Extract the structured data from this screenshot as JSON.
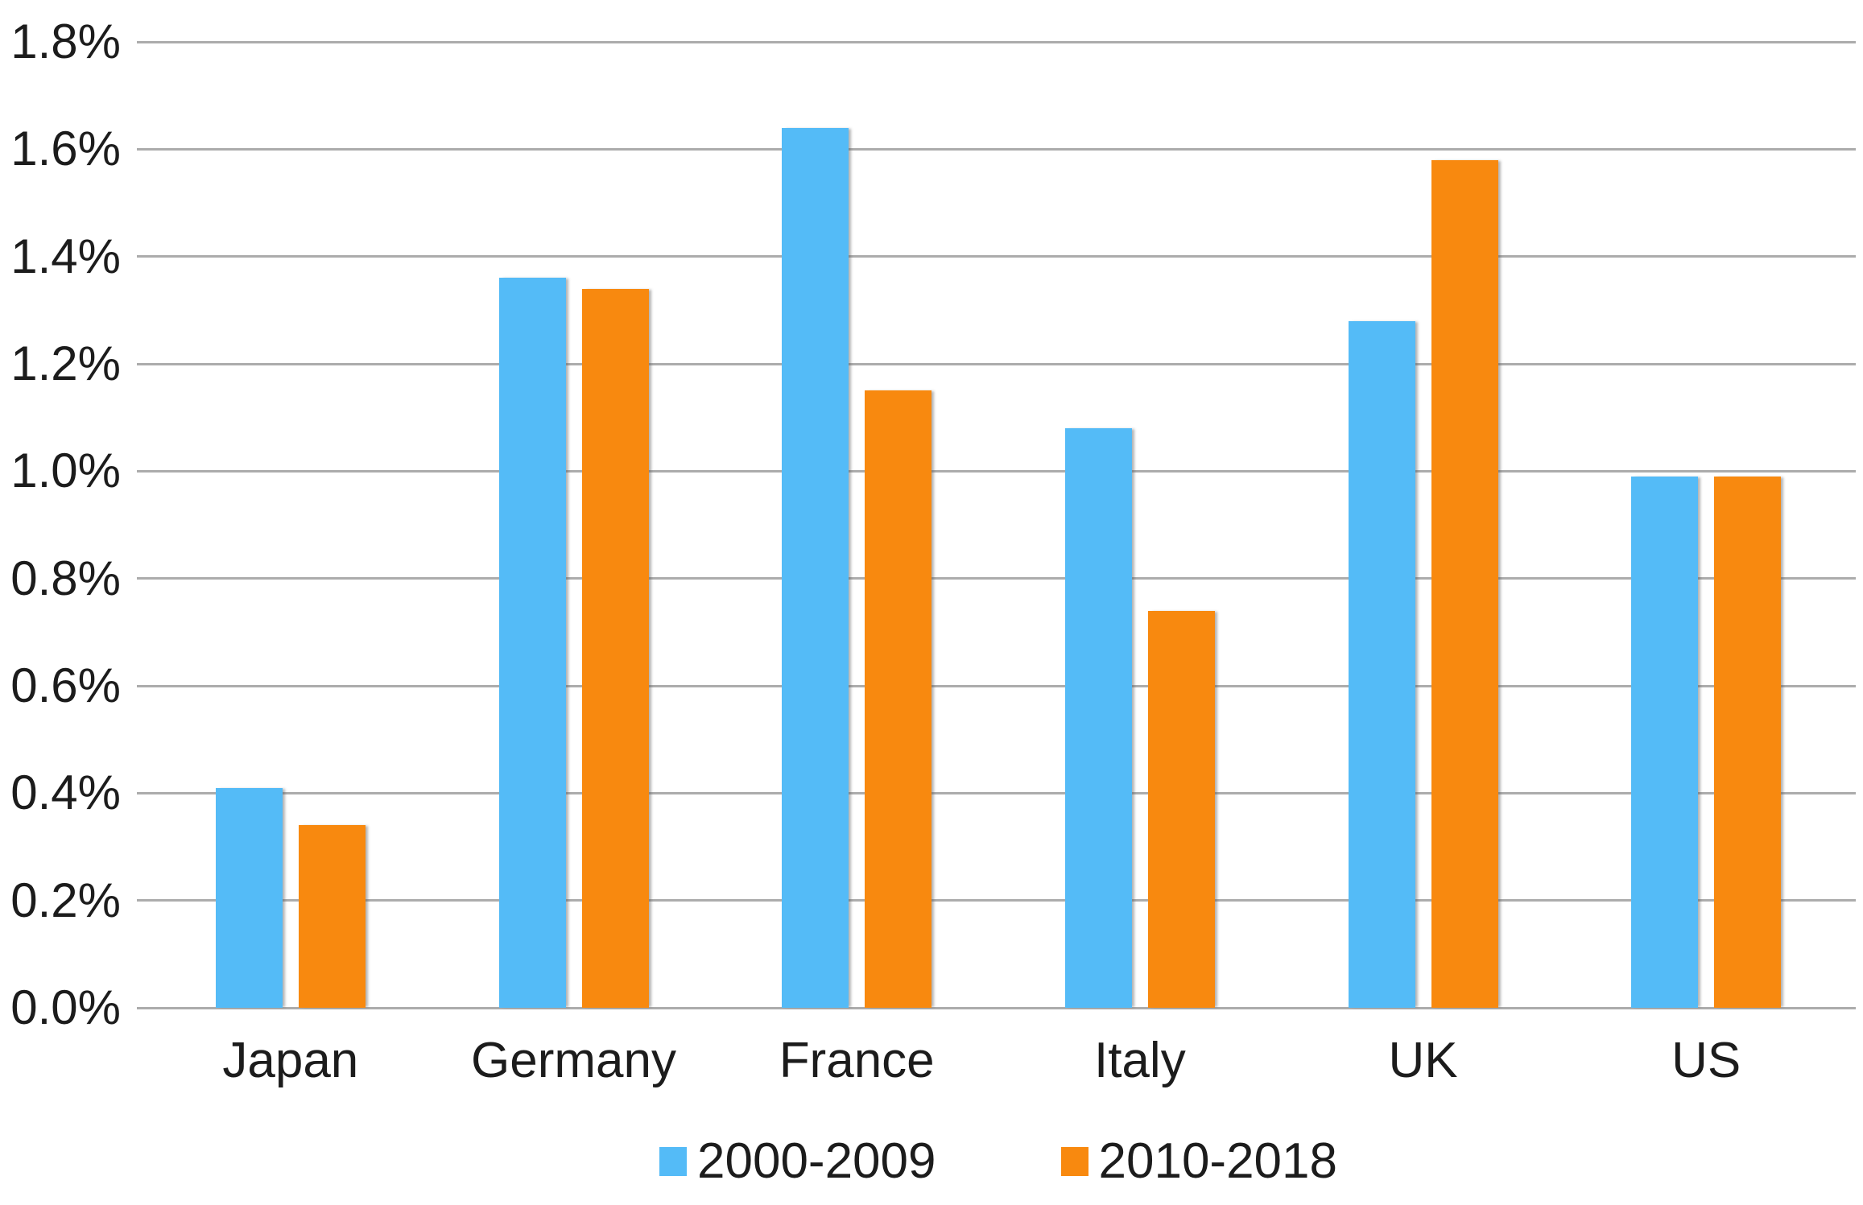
{
  "chart_data": {
    "type": "bar",
    "title": "",
    "xlabel": "",
    "ylabel": "",
    "categories": [
      "Japan",
      "Germany",
      "France",
      "Italy",
      "UK",
      "US"
    ],
    "series": [
      {
        "name": "2000-2009",
        "color": "#54bbf7",
        "values": [
          0.41,
          1.36,
          1.64,
          1.08,
          1.28,
          0.99
        ]
      },
      {
        "name": "2010-2018",
        "color": "#f8890f",
        "values": [
          0.34,
          1.34,
          1.15,
          0.74,
          1.58,
          0.99
        ]
      }
    ],
    "ylim": [
      0,
      1.8
    ],
    "ytick_step": 0.2,
    "yticks": [
      "0.0%",
      "0.2%",
      "0.4%",
      "0.6%",
      "0.8%",
      "1.0%",
      "1.2%",
      "1.4%",
      "1.6%",
      "1.8%"
    ],
    "grid": true,
    "gridline_color": "#acacac",
    "text_color": "#1c1c1c",
    "background_color": "#ffffff",
    "legend_position": "bottom"
  }
}
